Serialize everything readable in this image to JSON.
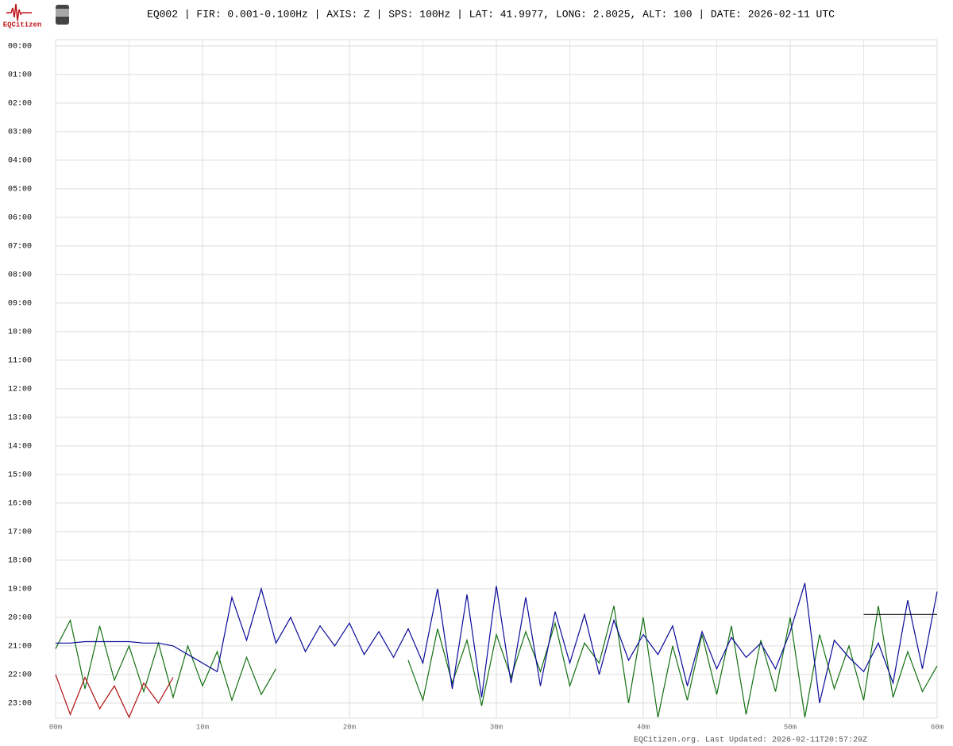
{
  "header": {
    "logo_text": "EQCitizen"
  },
  "chart_data": {
    "type": "helicorder",
    "title": "EQ002 | FIR: 0.001-0.100Hz | AXIS: Z | SPS: 100Hz | LAT: 41.9977, LONG: 2.8025, ALT: 100 | DATE: 2026-02-11 UTC",
    "footer": "EQCitizen.org. Last Updated: 2026-02-11T20:57:29Z",
    "xlim": [
      0,
      60
    ],
    "xticks": [
      {
        "value": 0,
        "label": "00m"
      },
      {
        "value": 10,
        "label": "10m"
      },
      {
        "value": 20,
        "label": "20m"
      },
      {
        "value": 30,
        "label": "30m"
      },
      {
        "value": 40,
        "label": "40m"
      },
      {
        "value": 50,
        "label": "50m"
      },
      {
        "value": 60,
        "label": "60m"
      }
    ],
    "minor_xticks": [
      5,
      15,
      25,
      35,
      45,
      55
    ],
    "ylim": [
      -0.22,
      23.53
    ],
    "yticks": [
      {
        "value": 0,
        "label": "00:00"
      },
      {
        "value": 1,
        "label": "01:00"
      },
      {
        "value": 2,
        "label": "02:00"
      },
      {
        "value": 3,
        "label": "03:00"
      },
      {
        "value": 4,
        "label": "04:00"
      },
      {
        "value": 5,
        "label": "05:00"
      },
      {
        "value": 6,
        "label": "06:00"
      },
      {
        "value": 7,
        "label": "07:00"
      },
      {
        "value": 8,
        "label": "08:00"
      },
      {
        "value": 9,
        "label": "09:00"
      },
      {
        "value": 10,
        "label": "10:00"
      },
      {
        "value": 11,
        "label": "11:00"
      },
      {
        "value": 12,
        "label": "12:00"
      },
      {
        "value": 13,
        "label": "13:00"
      },
      {
        "value": 14,
        "label": "14:00"
      },
      {
        "value": 15,
        "label": "15:00"
      },
      {
        "value": 16,
        "label": "16:00"
      },
      {
        "value": 17,
        "label": "17:00"
      },
      {
        "value": 18,
        "label": "18:00"
      },
      {
        "value": 19,
        "label": "19:00"
      },
      {
        "value": 20,
        "label": "20:00"
      },
      {
        "value": 21,
        "label": "21:00"
      },
      {
        "value": 22,
        "label": "22:00"
      },
      {
        "value": 23,
        "label": "23:00"
      }
    ],
    "grid": true,
    "x": [
      0,
      1,
      2,
      3,
      4,
      5,
      6,
      7,
      8,
      9,
      10,
      11,
      12,
      13,
      14,
      15,
      16,
      17,
      18,
      19,
      20,
      21,
      22,
      23,
      24,
      25,
      26,
      27,
      28,
      29,
      30,
      31,
      32,
      33,
      34,
      35,
      36,
      37,
      38,
      39,
      40,
      41,
      42,
      43,
      44,
      45,
      46,
      47,
      48,
      49,
      50,
      51,
      52,
      53,
      54,
      55,
      56,
      57,
      58,
      59,
      60
    ],
    "series": [
      {
        "color": "#127012",
        "values": [
          21.1,
          20.1,
          22.5,
          20.3,
          22.2,
          21.0,
          22.6,
          20.9,
          22.8,
          21.0,
          22.4,
          21.2,
          22.9,
          21.4,
          22.7,
          21.8,
          null,
          null,
          null,
          null,
          null,
          null,
          null,
          null,
          21.5,
          22.9,
          20.4,
          22.3,
          20.8,
          23.1,
          20.6,
          22.1,
          20.5,
          21.9,
          20.2,
          22.4,
          20.9,
          21.6,
          19.6,
          23.0,
          20.0,
          23.5,
          21.0,
          22.9,
          20.6,
          22.7,
          20.3,
          23.4,
          20.8,
          22.6,
          20.0,
          23.5,
          20.6,
          22.5,
          21.0,
          22.9,
          19.6,
          22.8,
          21.2,
          22.6,
          21.7
        ]
      },
      {
        "color": "#0a0a9a",
        "values": [
          20.9,
          20.9,
          20.85,
          20.85,
          20.85,
          20.85,
          20.9,
          20.9,
          21.0,
          21.3,
          21.6,
          21.9,
          19.3,
          20.8,
          19.0,
          20.9,
          20.0,
          21.2,
          20.3,
          21.0,
          20.2,
          21.3,
          20.5,
          21.4,
          20.4,
          21.6,
          19.0,
          22.5,
          19.2,
          22.8,
          18.9,
          22.3,
          19.3,
          22.4,
          19.8,
          21.6,
          19.9,
          22.0,
          20.1,
          21.5,
          20.6,
          21.3,
          20.3,
          22.4,
          20.5,
          21.8,
          20.7,
          21.4,
          20.9,
          21.8,
          20.5,
          18.8,
          23.0,
          20.8,
          21.4,
          21.9,
          20.9,
          22.3,
          19.4,
          21.8,
          19.1
        ]
      },
      {
        "color": "#b00f0f",
        "values": [
          22.0,
          23.4,
          22.1,
          23.2,
          22.4,
          23.5,
          22.3,
          23.0,
          22.1,
          null,
          null,
          null,
          null,
          null,
          null,
          null,
          null,
          null,
          null,
          null,
          null,
          null,
          null,
          null,
          null,
          null,
          null,
          null,
          null,
          null,
          null,
          null,
          null,
          null,
          null,
          null,
          null,
          null,
          null,
          null,
          null,
          null,
          null,
          null,
          null,
          null,
          null,
          null,
          null,
          null,
          null,
          null,
          null,
          null,
          null,
          null,
          null,
          null,
          null,
          null,
          null
        ]
      },
      {
        "color": "#000000",
        "values": [
          null,
          null,
          null,
          null,
          null,
          null,
          null,
          null,
          null,
          null,
          null,
          null,
          null,
          null,
          null,
          null,
          null,
          null,
          null,
          null,
          null,
          null,
          null,
          null,
          null,
          null,
          null,
          null,
          null,
          null,
          null,
          null,
          null,
          null,
          null,
          null,
          null,
          null,
          null,
          null,
          null,
          null,
          null,
          null,
          null,
          null,
          null,
          null,
          null,
          null,
          null,
          null,
          null,
          null,
          null,
          19.9,
          19.9,
          19.9,
          19.9,
          19.9,
          19.9
        ]
      }
    ]
  }
}
